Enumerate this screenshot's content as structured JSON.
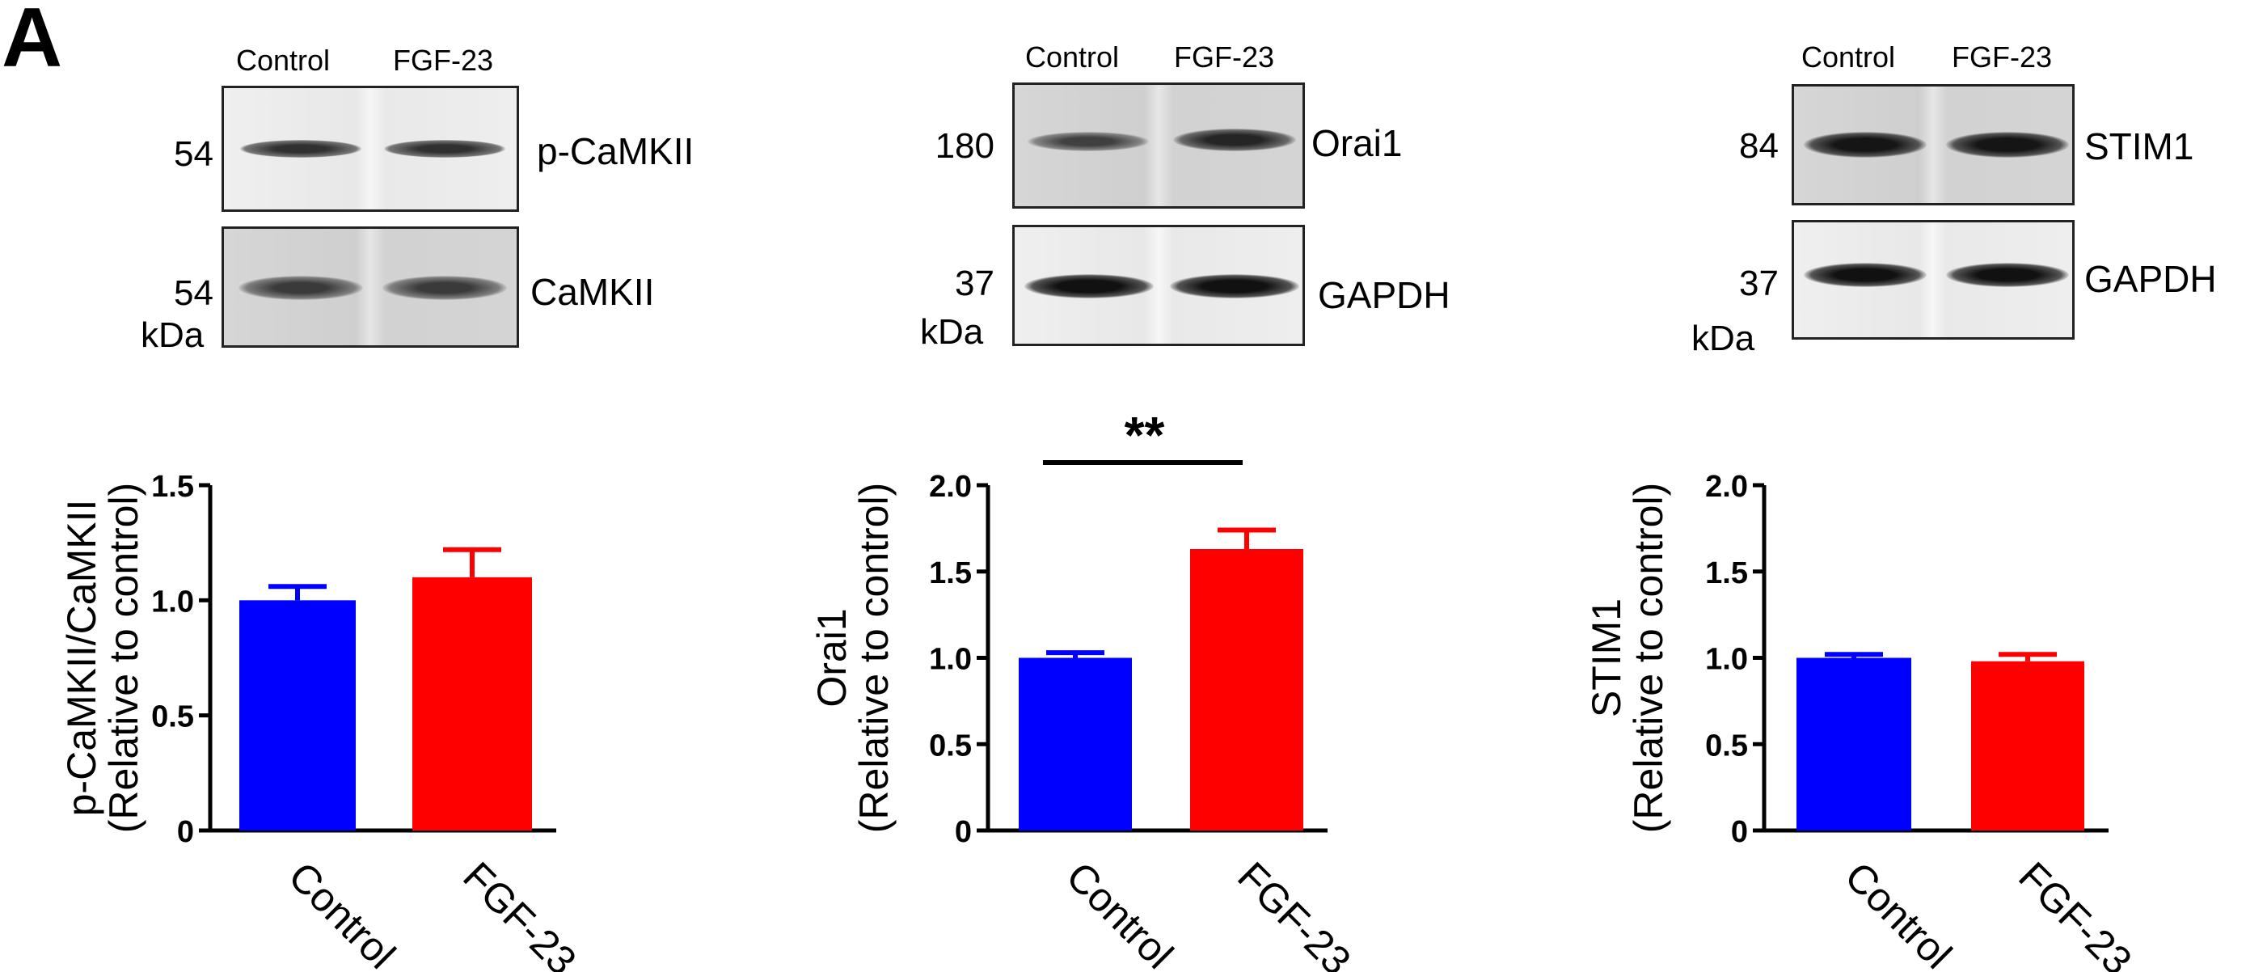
{
  "panel_label": "A",
  "blots": [
    {
      "lanes": [
        "Control",
        "FGF-23"
      ],
      "rows": [
        {
          "mw": "54",
          "protein": "p-CaMKII"
        },
        {
          "mw": "54",
          "protein": "CaMKII"
        }
      ],
      "unit": "kDa"
    },
    {
      "lanes": [
        "Control",
        "FGF-23"
      ],
      "rows": [
        {
          "mw": "180",
          "protein": "Orai1"
        },
        {
          "mw": "37",
          "protein": "GAPDH"
        }
      ],
      "unit": "kDa"
    },
    {
      "lanes": [
        "Control",
        "FGF-23"
      ],
      "rows": [
        {
          "mw": "84",
          "protein": "STIM1"
        },
        {
          "mw": "37",
          "protein": "GAPDH"
        }
      ],
      "unit": "kDa"
    }
  ],
  "colors": {
    "control": "#0000ff",
    "fgf23": "#ff0000"
  },
  "chart_data": [
    {
      "type": "bar",
      "categories": [
        "Control",
        "FGF-23"
      ],
      "values": [
        1.0,
        1.1
      ],
      "errors": [
        0.06,
        0.12
      ],
      "ylabel_line1": "p-CaMKII/CaMKII",
      "ylabel_line2": "(Relative to control)",
      "ylim": [
        0,
        1.5
      ],
      "yticks": [
        0,
        0.5,
        1.0,
        1.5
      ],
      "ytick_labels": [
        "0",
        "0.5",
        "1.0",
        "1.5"
      ],
      "significance": ""
    },
    {
      "type": "bar",
      "categories": [
        "Control",
        "FGF-23"
      ],
      "values": [
        1.0,
        1.63
      ],
      "errors": [
        0.03,
        0.11
      ],
      "ylabel_line1": "Orai1",
      "ylabel_line2": "(Relative to control)",
      "ylim": [
        0,
        2.0
      ],
      "yticks": [
        0,
        0.5,
        1.0,
        1.5,
        2.0
      ],
      "ytick_labels": [
        "0",
        "0.5",
        "1.0",
        "1.5",
        "2.0"
      ],
      "significance": "**"
    },
    {
      "type": "bar",
      "categories": [
        "Control",
        "FGF-23"
      ],
      "values": [
        1.0,
        0.98
      ],
      "errors": [
        0.02,
        0.04
      ],
      "ylabel_line1": "STIM1",
      "ylabel_line2": "(Relative to control)",
      "ylim": [
        0,
        2.0
      ],
      "yticks": [
        0,
        0.5,
        1.0,
        1.5,
        2.0
      ],
      "ytick_labels": [
        "0",
        "0.5",
        "1.0",
        "1.5",
        "2.0"
      ],
      "significance": ""
    }
  ]
}
